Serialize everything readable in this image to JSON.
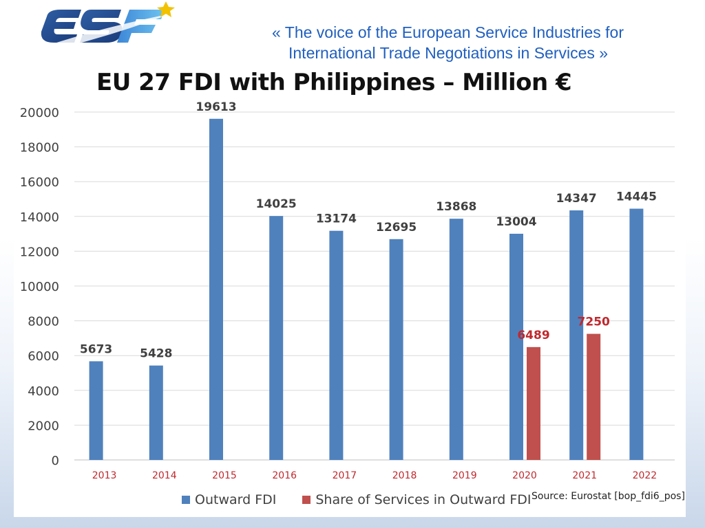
{
  "header": {
    "tagline_line1": "«  The voice of the European Service Industries for",
    "tagline_line2": "International Trade Negotiations in Services  »",
    "logo_text": "ESF"
  },
  "colors": {
    "outward": "#4f81bd",
    "services": "#c0504d",
    "services_label": "#c0282d",
    "tagline": "#1f5fbf",
    "star": "#f2c200"
  },
  "chart_data": {
    "type": "bar",
    "title": "EU 27 FDI with Philippines – Million €",
    "categories": [
      "2013",
      "2014",
      "2015",
      "2016",
      "2017",
      "2018",
      "2019",
      "2020",
      "2021",
      "2022"
    ],
    "series": [
      {
        "name": "Outward FDI",
        "values": [
          5673,
          5428,
          19613,
          14025,
          13174,
          12695,
          13868,
          13004,
          14347,
          14445
        ]
      },
      {
        "name": "Share of Services in Outward FDI",
        "values": [
          null,
          null,
          null,
          null,
          null,
          null,
          null,
          6489,
          7250,
          null
        ]
      }
    ],
    "yticks": [
      "0",
      "2000",
      "4000",
      "6000",
      "8000",
      "10000",
      "12000",
      "14000",
      "16000",
      "18000",
      "20000"
    ],
    "ylim": [
      0,
      20000
    ],
    "grid": true,
    "legend": "bottom",
    "xlabel": "",
    "ylabel": ""
  },
  "source_note": "Source: Eurostat [bop_fdi6_pos]"
}
